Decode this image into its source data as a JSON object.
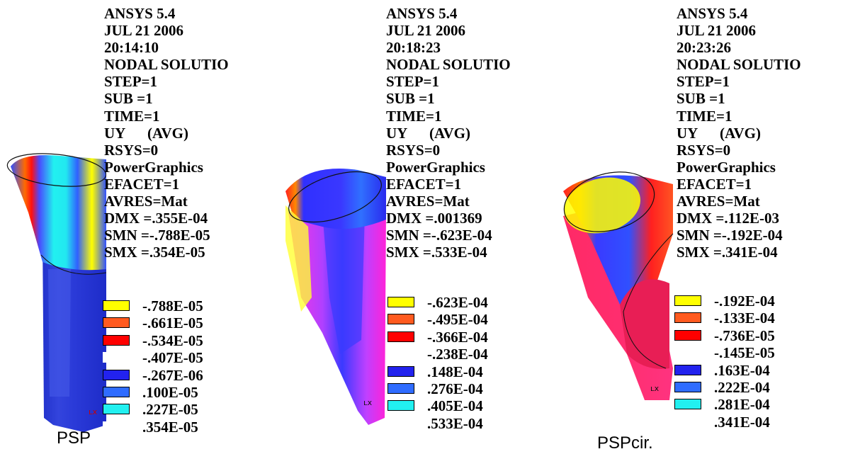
{
  "colors": {
    "swatch_1": "#ffff00",
    "swatch_2": "#ff5a1f",
    "swatch_3": "#ff0000",
    "swatch_4": "#ffffff",
    "swatch_5": "#2222ee",
    "swatch_6": "#2f6cff",
    "swatch_7": "#22f0f0",
    "model_magenta": "#ff22d8",
    "model_pink": "#ff2a66"
  },
  "panels": [
    {
      "info": [
        "ANSYS 5.4",
        "JUL 21 2006",
        "20:14:10",
        "NODAL SOLUTIO",
        "STEP=1",
        "SUB =1",
        "TIME=1",
        "UY      (AVG)",
        "RSYS=0",
        "PowerGraphics",
        "EFACET=1",
        "AVRES=Mat",
        "DMX =.355E-04",
        "SMN =-.788E-05",
        "SMX =.354E-05"
      ],
      "legend": [
        "-.788E-05",
        "-.661E-05",
        "-.534E-05",
        "-.407E-05",
        "-.267E-06",
        ".100E-05",
        ".227E-05",
        ".354E-05"
      ],
      "caption": "PSP"
    },
    {
      "info": [
        "ANSYS 5.4",
        "JUL 21 2006",
        "20:18:23",
        "NODAL SOLUTIO",
        "STEP=1",
        "SUB =1",
        "TIME=1",
        "UY      (AVG)",
        "RSYS=0",
        "PowerGraphics",
        "EFACET=1",
        "AVRES=Mat",
        "DMX =.001369",
        "SMN =-.623E-04",
        "SMX =.533E-04"
      ],
      "legend": [
        "-.623E-04",
        "-.495E-04",
        "-.366E-04",
        "-.238E-04",
        ".148E-04",
        ".276E-04",
        ".405E-04",
        ".533E-04"
      ]
    },
    {
      "info": [
        "ANSYS 5.4",
        "JUL 21 2006",
        "20:23:26",
        "NODAL SOLUTIO",
        "STEP=1",
        "SUB =1",
        "TIME=1",
        "UY      (AVG)",
        "RSYS=0",
        "PowerGraphics",
        "EFACET=1",
        "AVRES=Mat",
        "DMX =.112E-03",
        "SMN =-.192E-04",
        "SMX =.341E-04"
      ],
      "legend": [
        "-.192E-04",
        "-.133E-04",
        "-.736E-05",
        "-.145E-05",
        ".163E-04",
        ".222E-04",
        ".281E-04",
        ".341E-04"
      ],
      "caption": "PSPcir."
    }
  ]
}
